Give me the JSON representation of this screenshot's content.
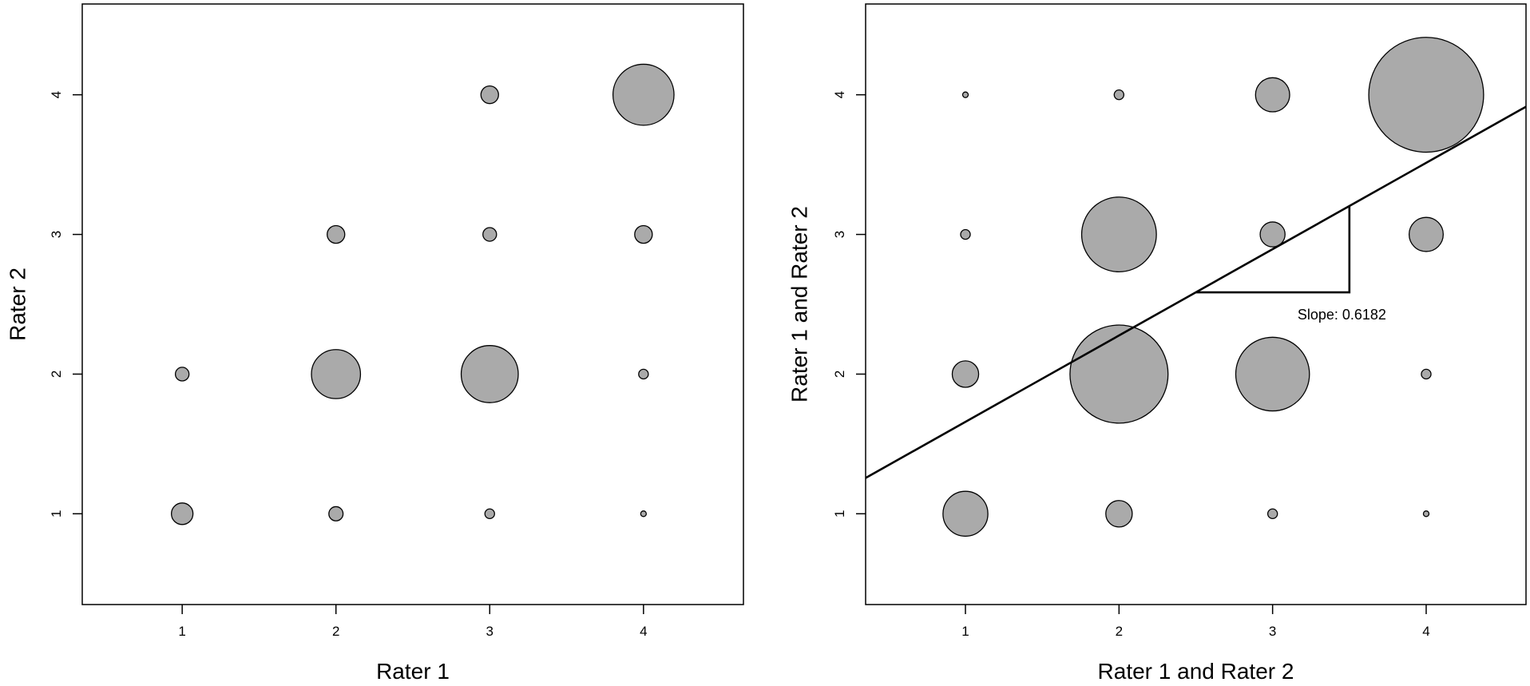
{
  "chart_data": [
    {
      "type": "scatter",
      "xlabel": "Rater 1",
      "ylabel": "Rater 2",
      "x_ticks": [
        "1",
        "2",
        "3",
        "4"
      ],
      "y_ticks": [
        "1",
        "2",
        "3",
        "4"
      ],
      "xlim": [
        0.35,
        4.65
      ],
      "ylim": [
        0.35,
        4.65
      ],
      "grid": false,
      "marker_color": "#aaaaaa",
      "points": [
        {
          "x": 1,
          "y": 1,
          "count": 3
        },
        {
          "x": 2,
          "y": 1,
          "count": 1.3
        },
        {
          "x": 3,
          "y": 1,
          "count": 0.6
        },
        {
          "x": 4,
          "y": 1,
          "count": 0.15
        },
        {
          "x": 1,
          "y": 2,
          "count": 1.2
        },
        {
          "x": 2,
          "y": 2,
          "count": 15.5
        },
        {
          "x": 3,
          "y": 2,
          "count": 21
        },
        {
          "x": 4,
          "y": 2,
          "count": 0.6
        },
        {
          "x": 2,
          "y": 3,
          "count": 2
        },
        {
          "x": 3,
          "y": 3,
          "count": 1.2
        },
        {
          "x": 4,
          "y": 3,
          "count": 2
        },
        {
          "x": 3,
          "y": 4,
          "count": 2
        },
        {
          "x": 4,
          "y": 4,
          "count": 24
        }
      ]
    },
    {
      "type": "scatter",
      "xlabel": "Rater 1 and Rater 2",
      "ylabel": "Rater 1 and Rater 2",
      "x_ticks": [
        "1",
        "2",
        "3",
        "4"
      ],
      "y_ticks": [
        "1",
        "2",
        "3",
        "4"
      ],
      "xlim": [
        0.35,
        4.65
      ],
      "ylim": [
        0.35,
        4.65
      ],
      "grid": false,
      "marker_color": "#aaaaaa",
      "points": [
        {
          "x": 1,
          "y": 1,
          "count": 13
        },
        {
          "x": 2,
          "y": 1,
          "count": 4.5
        },
        {
          "x": 3,
          "y": 1,
          "count": 0.6
        },
        {
          "x": 4,
          "y": 1,
          "count": 0.15
        },
        {
          "x": 1,
          "y": 2,
          "count": 4.5
        },
        {
          "x": 2,
          "y": 2,
          "count": 62
        },
        {
          "x": 3,
          "y": 2,
          "count": 35
        },
        {
          "x": 4,
          "y": 2,
          "count": 0.6
        },
        {
          "x": 1,
          "y": 3,
          "count": 0.6
        },
        {
          "x": 2,
          "y": 3,
          "count": 36
        },
        {
          "x": 3,
          "y": 3,
          "count": 4
        },
        {
          "x": 4,
          "y": 3,
          "count": 7.5
        },
        {
          "x": 1,
          "y": 4,
          "count": 0.15
        },
        {
          "x": 2,
          "y": 4,
          "count": 0.6
        },
        {
          "x": 3,
          "y": 4,
          "count": 7.5
        },
        {
          "x": 4,
          "y": 4,
          "count": 85
        }
      ],
      "regression_line": {
        "slope": 0.6182,
        "intercept": 1.04
      },
      "slope_triangle": {
        "x_start": 2.5,
        "x_end": 3.5
      },
      "annotation": "Slope: 0.6182"
    }
  ]
}
